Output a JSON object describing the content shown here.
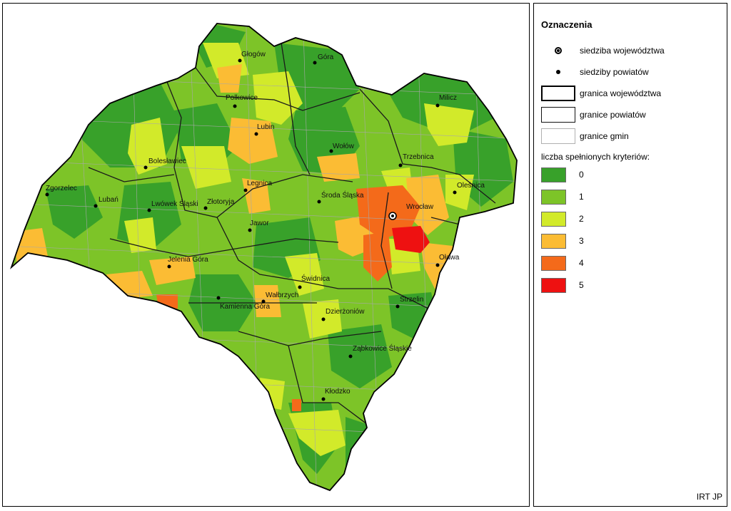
{
  "legend": {
    "title": "Oznaczenia",
    "capital_label": "siedziba województwa",
    "seats_label": "siedziby powiatów",
    "voivodeship_border_label": "granica województwa",
    "county_border_label": "granice powiatów",
    "commune_border_label": "granice gmin",
    "classes_heading": "liczba spełnionych kryteriów:",
    "classes": [
      {
        "label": "0",
        "color": "#38a12a"
      },
      {
        "label": "1",
        "color": "#7dc428"
      },
      {
        "label": "2",
        "color": "#d2ea2a"
      },
      {
        "label": "3",
        "color": "#fbbc34"
      },
      {
        "label": "4",
        "color": "#f46a1a"
      },
      {
        "label": "5",
        "color": "#ee1111"
      }
    ]
  },
  "credit": "IRT JP",
  "map": {
    "capital": "Wrocław",
    "cities": [
      "Głogów",
      "Góra",
      "Milicz",
      "Polkowice",
      "Lubin",
      "Wołów",
      "Trzebnica",
      "Bolesławiec",
      "Oleśnica",
      "Zgorzelec",
      "Legnica",
      "Środa Śląska",
      "Lubań",
      "Lwówek Śląski",
      "Złotoryja",
      "Jawor",
      "Oława",
      "Jelenia Góra",
      "Świdnica",
      "Wałbrzych",
      "Strzelin",
      "Kamienna Góra",
      "Dzierżoniów",
      "Ząbkowice Śląskie",
      "Kłodzko"
    ]
  }
}
